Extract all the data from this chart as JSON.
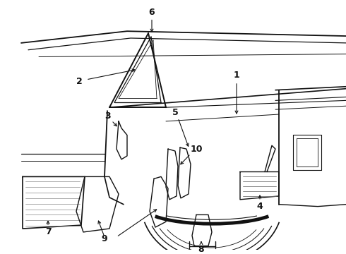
{
  "bg_color": "#ffffff",
  "line_color": "#111111",
  "figsize": [
    4.9,
    3.6
  ],
  "dpi": 100
}
